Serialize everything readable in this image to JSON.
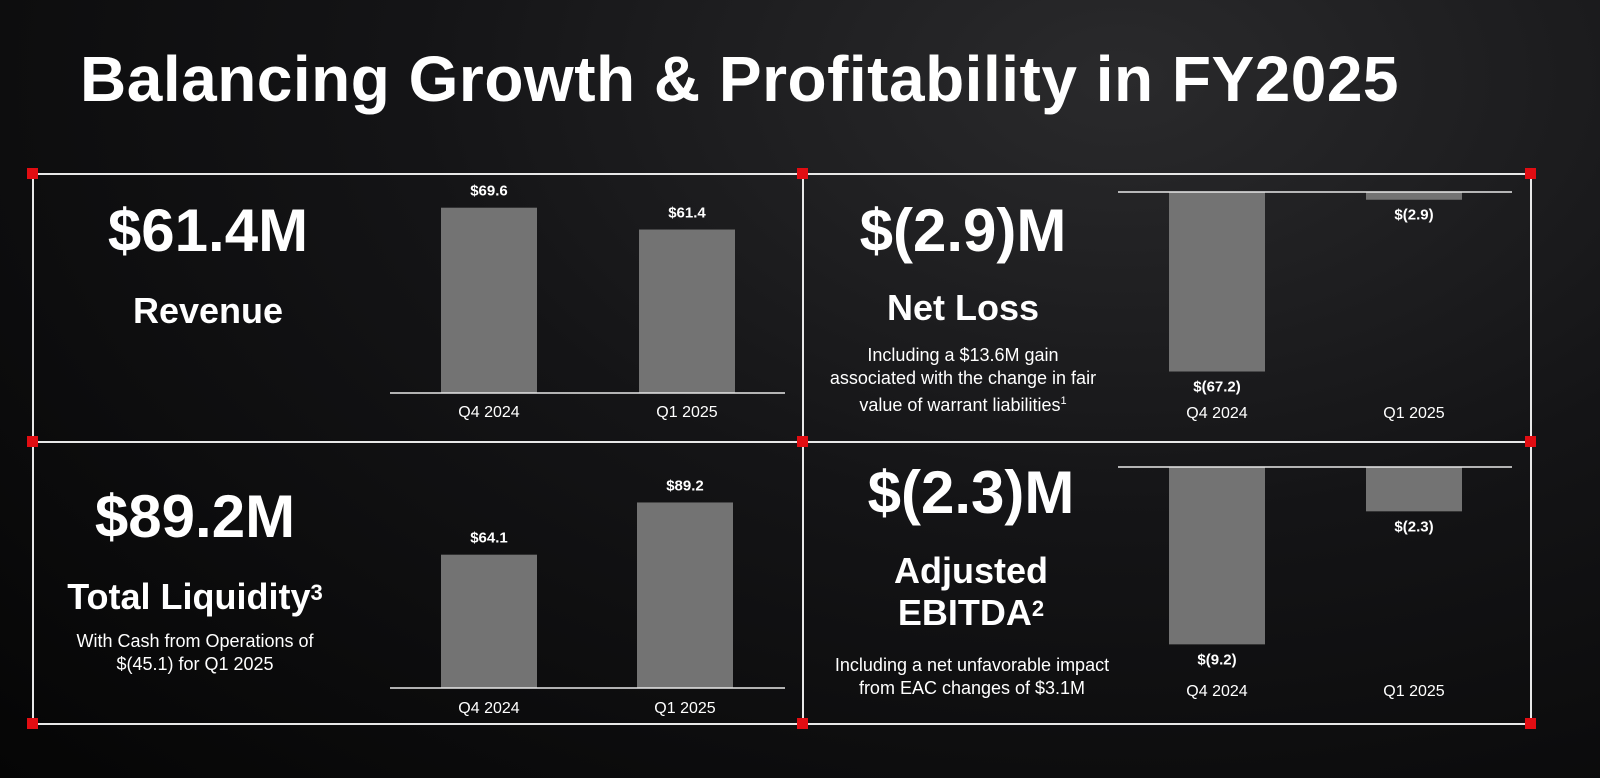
{
  "title": "Balancing Growth & Profitability in FY2025",
  "colors": {
    "bar": "#737373",
    "frame": "#e8e8e8",
    "corner": "#e10d12",
    "text": "#ffffff"
  },
  "panels": {
    "revenue": {
      "value": "$61.4M",
      "label": "Revenue"
    },
    "net_loss": {
      "value": "$(2.9)M",
      "label": "Net Loss",
      "note_line1": "Including a $13.6M gain",
      "note_line2": "associated with the change in fair",
      "note_line3": "value of warrant liabilities",
      "note_sup": "1"
    },
    "liquidity": {
      "value": "$89.2M",
      "label": "Total Liquidity",
      "label_sup": "3",
      "note_line1": "With Cash from Operations of",
      "note_line2": "$(45.1) for Q1 2025"
    },
    "ebitda": {
      "value": "$(2.3)M",
      "label_line1": "Adjusted",
      "label_line2": "EBITDA",
      "label_sup": "2",
      "note_line1": "Including a net unfavorable impact",
      "note_line2": "from EAC changes of $3.1M"
    }
  },
  "chart_data": [
    {
      "type": "bar",
      "categories": [
        "Q4 2024",
        "Q1 2025"
      ],
      "values": [
        69.6,
        61.4
      ],
      "data_labels": [
        "$69.6",
        "$61.4"
      ],
      "title": "",
      "xlabel": "",
      "ylabel": "",
      "ylim": [
        0,
        80
      ],
      "grid": false
    },
    {
      "type": "bar",
      "categories": [
        "Q4 2024",
        "Q1 2025"
      ],
      "values": [
        -67.2,
        -2.9
      ],
      "data_labels": [
        "$(67.2)",
        "$(2.9)"
      ],
      "title": "",
      "xlabel": "",
      "ylabel": "",
      "ylim": [
        -70,
        0
      ],
      "grid": false
    },
    {
      "type": "bar",
      "categories": [
        "Q4 2024",
        "Q1 2025"
      ],
      "values": [
        64.1,
        89.2
      ],
      "data_labels": [
        "$64.1",
        "$89.2"
      ],
      "title": "",
      "xlabel": "",
      "ylabel": "",
      "ylim": [
        0,
        100
      ],
      "grid": false
    },
    {
      "type": "bar",
      "categories": [
        "Q4 2024",
        "Q1 2025"
      ],
      "values": [
        -9.2,
        -2.3
      ],
      "data_labels": [
        "$(9.2)",
        "$(2.3)"
      ],
      "title": "",
      "xlabel": "",
      "ylabel": "",
      "ylim": [
        -9.7,
        0
      ],
      "grid": false
    }
  ]
}
